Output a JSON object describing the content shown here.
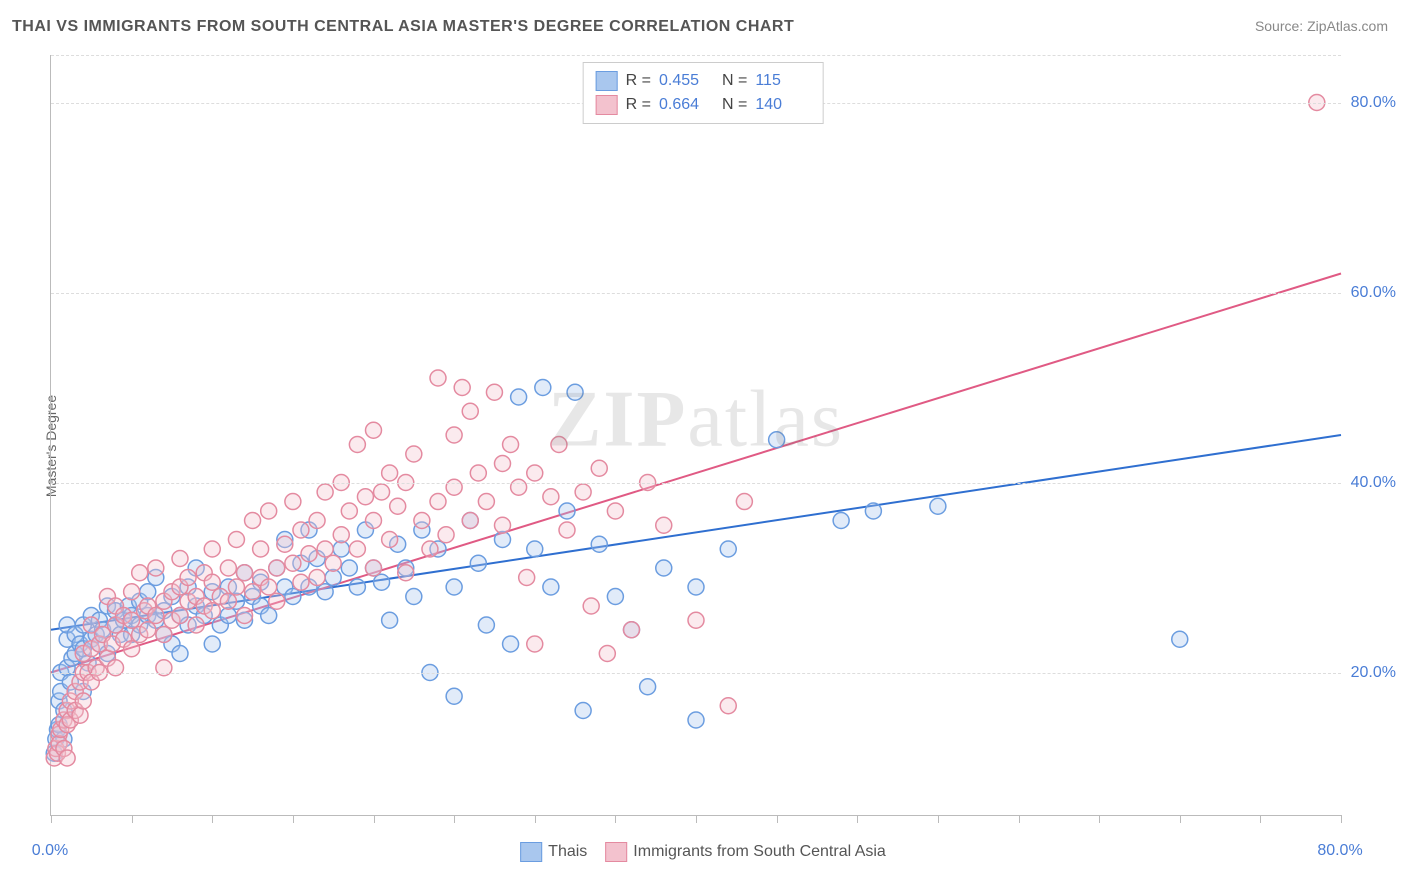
{
  "title": "THAI VS IMMIGRANTS FROM SOUTH CENTRAL ASIA MASTER'S DEGREE CORRELATION CHART",
  "source_prefix": "Source: ",
  "source_name": "ZipAtlas.com",
  "ylabel": "Master's Degree",
  "watermark_a": "ZIP",
  "watermark_b": "atlas",
  "chart": {
    "type": "scatter",
    "xlim": [
      0,
      80
    ],
    "ylim": [
      5,
      85
    ],
    "x_tick_start": 0,
    "x_tick_step": 5,
    "x_tick_count": 17,
    "x_labels": [
      {
        "value": 0,
        "text": "0.0%"
      },
      {
        "value": 80,
        "text": "80.0%"
      }
    ],
    "y_gridlines": [
      20,
      40,
      60,
      80,
      85
    ],
    "y_labels": [
      {
        "value": 20,
        "text": "20.0%"
      },
      {
        "value": 40,
        "text": "40.0%"
      },
      {
        "value": 60,
        "text": "60.0%"
      },
      {
        "value": 80,
        "text": "80.0%"
      }
    ],
    "background_color": "#ffffff",
    "grid_color": "#dddddd",
    "axis_color": "#bbbbbb",
    "marker_radius": 8,
    "marker_stroke_width": 1.5,
    "marker_fill_opacity": 0.35,
    "line_width": 2,
    "series": [
      {
        "name": "Thais",
        "color_stroke": "#6b9de0",
        "color_fill": "#a9c7ee",
        "line_color": "#2f6fd0",
        "R": "0.455",
        "N": "115",
        "regression": {
          "x1": 0,
          "y1": 24.5,
          "x2": 80,
          "y2": 45.0
        },
        "points": [
          [
            0.2,
            11.5
          ],
          [
            0.3,
            13.0
          ],
          [
            0.4,
            14.0
          ],
          [
            0.5,
            14.5
          ],
          [
            0.5,
            17.0
          ],
          [
            0.6,
            18.0
          ],
          [
            0.6,
            20.0
          ],
          [
            0.8,
            13.0
          ],
          [
            0.8,
            16.0
          ],
          [
            1.0,
            20.5
          ],
          [
            1.0,
            23.5
          ],
          [
            1.0,
            25.0
          ],
          [
            1.2,
            19.0
          ],
          [
            1.3,
            21.5
          ],
          [
            1.5,
            22.0
          ],
          [
            1.5,
            24.0
          ],
          [
            1.8,
            23.0
          ],
          [
            2.0,
            22.5
          ],
          [
            2.0,
            25.0
          ],
          [
            2.0,
            18.0
          ],
          [
            2.3,
            21.0
          ],
          [
            2.5,
            23.5
          ],
          [
            2.5,
            26.0
          ],
          [
            2.8,
            24.0
          ],
          [
            3.0,
            23.0
          ],
          [
            3.0,
            25.5
          ],
          [
            3.2,
            24.5
          ],
          [
            3.5,
            22.0
          ],
          [
            3.5,
            27.0
          ],
          [
            4.0,
            25.0
          ],
          [
            4.0,
            26.5
          ],
          [
            4.3,
            24.0
          ],
          [
            4.5,
            25.5
          ],
          [
            4.8,
            27.0
          ],
          [
            5.0,
            26.0
          ],
          [
            5.0,
            24.0
          ],
          [
            5.5,
            27.5
          ],
          [
            5.5,
            25.0
          ],
          [
            6.0,
            26.0
          ],
          [
            6.0,
            28.5
          ],
          [
            6.5,
            25.5
          ],
          [
            6.5,
            30.0
          ],
          [
            7.0,
            26.5
          ],
          [
            7.0,
            24.0
          ],
          [
            7.5,
            28.0
          ],
          [
            7.5,
            23.0
          ],
          [
            8.0,
            26.0
          ],
          [
            8.0,
            22.0
          ],
          [
            8.5,
            25.0
          ],
          [
            8.5,
            29.0
          ],
          [
            9.0,
            27.0
          ],
          [
            9.0,
            31.0
          ],
          [
            9.5,
            26.0
          ],
          [
            10.0,
            23.0
          ],
          [
            10.0,
            28.5
          ],
          [
            10.5,
            25.0
          ],
          [
            11.0,
            29.0
          ],
          [
            11.0,
            26.0
          ],
          [
            11.5,
            27.5
          ],
          [
            12.0,
            25.5
          ],
          [
            12.0,
            30.5
          ],
          [
            12.5,
            28.0
          ],
          [
            13.0,
            29.5
          ],
          [
            13.0,
            27.0
          ],
          [
            13.5,
            26.0
          ],
          [
            14.0,
            31.0
          ],
          [
            14.5,
            29.0
          ],
          [
            14.5,
            34.0
          ],
          [
            15.0,
            28.0
          ],
          [
            15.5,
            31.5
          ],
          [
            16.0,
            29.0
          ],
          [
            16.0,
            35.0
          ],
          [
            16.5,
            32.0
          ],
          [
            17.0,
            28.5
          ],
          [
            17.5,
            30.0
          ],
          [
            18.0,
            33.0
          ],
          [
            18.5,
            31.0
          ],
          [
            19.0,
            29.0
          ],
          [
            19.5,
            35.0
          ],
          [
            20.0,
            31.0
          ],
          [
            20.5,
            29.5
          ],
          [
            21.0,
            25.5
          ],
          [
            21.5,
            33.5
          ],
          [
            22.0,
            31.0
          ],
          [
            22.5,
            28.0
          ],
          [
            23.0,
            35.0
          ],
          [
            23.5,
            20.0
          ],
          [
            24.0,
            33.0
          ],
          [
            25.0,
            29.0
          ],
          [
            25.0,
            17.5
          ],
          [
            26.0,
            36.0
          ],
          [
            26.5,
            31.5
          ],
          [
            27.0,
            25.0
          ],
          [
            28.0,
            34.0
          ],
          [
            28.5,
            23.0
          ],
          [
            29.0,
            49.0
          ],
          [
            30.0,
            33.0
          ],
          [
            30.5,
            50.0
          ],
          [
            31.0,
            29.0
          ],
          [
            32.0,
            37.0
          ],
          [
            32.5,
            49.5
          ],
          [
            33.0,
            16.0
          ],
          [
            34.0,
            33.5
          ],
          [
            35.0,
            28.0
          ],
          [
            36.0,
            24.5
          ],
          [
            37.0,
            18.5
          ],
          [
            38.0,
            31.0
          ],
          [
            40.0,
            29.0
          ],
          [
            40.0,
            15.0
          ],
          [
            42.0,
            33.0
          ],
          [
            45.0,
            44.5
          ],
          [
            49.0,
            36.0
          ],
          [
            51.0,
            37.0
          ],
          [
            55.0,
            37.5
          ],
          [
            70.0,
            23.5
          ]
        ]
      },
      {
        "name": "Immigrants from South Central Asia",
        "color_stroke": "#e48aa0",
        "color_fill": "#f3c2ce",
        "line_color": "#e05a84",
        "R": "0.664",
        "N": "140",
        "regression": {
          "x1": 0,
          "y1": 20.0,
          "x2": 80,
          "y2": 62.0
        },
        "points": [
          [
            0.2,
            11.0
          ],
          [
            0.3,
            12.0
          ],
          [
            0.4,
            11.5
          ],
          [
            0.5,
            13.5
          ],
          [
            0.5,
            12.5
          ],
          [
            0.6,
            14.0
          ],
          [
            0.8,
            15.0
          ],
          [
            0.8,
            12.0
          ],
          [
            1.0,
            16.0
          ],
          [
            1.0,
            14.5
          ],
          [
            1.0,
            11.0
          ],
          [
            1.2,
            17.0
          ],
          [
            1.2,
            15.0
          ],
          [
            1.5,
            18.0
          ],
          [
            1.5,
            16.0
          ],
          [
            1.8,
            19.0
          ],
          [
            1.8,
            15.5
          ],
          [
            2.0,
            20.0
          ],
          [
            2.0,
            17.0
          ],
          [
            2.0,
            22.0
          ],
          [
            2.3,
            20.0
          ],
          [
            2.5,
            22.5
          ],
          [
            2.5,
            19.0
          ],
          [
            2.5,
            25.0
          ],
          [
            2.8,
            20.5
          ],
          [
            3.0,
            23.0
          ],
          [
            3.0,
            20.0
          ],
          [
            3.2,
            24.0
          ],
          [
            3.5,
            21.5
          ],
          [
            3.5,
            28.0
          ],
          [
            3.8,
            23.0
          ],
          [
            4.0,
            25.0
          ],
          [
            4.0,
            20.5
          ],
          [
            4.0,
            27.0
          ],
          [
            4.5,
            23.5
          ],
          [
            4.5,
            26.0
          ],
          [
            5.0,
            25.5
          ],
          [
            5.0,
            22.5
          ],
          [
            5.0,
            28.5
          ],
          [
            5.5,
            24.0
          ],
          [
            5.5,
            30.5
          ],
          [
            5.8,
            26.5
          ],
          [
            6.0,
            27.0
          ],
          [
            6.0,
            24.5
          ],
          [
            6.5,
            26.0
          ],
          [
            6.5,
            31.0
          ],
          [
            7.0,
            27.5
          ],
          [
            7.0,
            24.0
          ],
          [
            7.0,
            20.5
          ],
          [
            7.5,
            28.5
          ],
          [
            7.5,
            25.5
          ],
          [
            8.0,
            29.0
          ],
          [
            8.0,
            26.0
          ],
          [
            8.0,
            32.0
          ],
          [
            8.5,
            27.5
          ],
          [
            8.5,
            30.0
          ],
          [
            9.0,
            28.0
          ],
          [
            9.0,
            25.0
          ],
          [
            9.5,
            30.5
          ],
          [
            9.5,
            27.0
          ],
          [
            10.0,
            29.5
          ],
          [
            10.0,
            26.5
          ],
          [
            10.0,
            33.0
          ],
          [
            10.5,
            28.0
          ],
          [
            11.0,
            31.0
          ],
          [
            11.0,
            27.5
          ],
          [
            11.5,
            29.0
          ],
          [
            11.5,
            34.0
          ],
          [
            12.0,
            30.5
          ],
          [
            12.0,
            26.0
          ],
          [
            12.5,
            28.5
          ],
          [
            12.5,
            36.0
          ],
          [
            13.0,
            30.0
          ],
          [
            13.0,
            33.0
          ],
          [
            13.5,
            29.0
          ],
          [
            13.5,
            37.0
          ],
          [
            14.0,
            31.0
          ],
          [
            14.0,
            27.5
          ],
          [
            14.5,
            33.5
          ],
          [
            15.0,
            31.5
          ],
          [
            15.0,
            38.0
          ],
          [
            15.5,
            29.5
          ],
          [
            15.5,
            35.0
          ],
          [
            16.0,
            32.5
          ],
          [
            16.5,
            36.0
          ],
          [
            16.5,
            30.0
          ],
          [
            17.0,
            39.0
          ],
          [
            17.0,
            33.0
          ],
          [
            17.5,
            31.5
          ],
          [
            18.0,
            40.0
          ],
          [
            18.0,
            34.5
          ],
          [
            18.5,
            37.0
          ],
          [
            19.0,
            33.0
          ],
          [
            19.0,
            44.0
          ],
          [
            19.5,
            38.5
          ],
          [
            20.0,
            36.0
          ],
          [
            20.0,
            31.0
          ],
          [
            20.0,
            45.5
          ],
          [
            20.5,
            39.0
          ],
          [
            21.0,
            34.0
          ],
          [
            21.0,
            41.0
          ],
          [
            21.5,
            37.5
          ],
          [
            22.0,
            40.0
          ],
          [
            22.0,
            30.5
          ],
          [
            22.5,
            43.0
          ],
          [
            23.0,
            36.0
          ],
          [
            23.5,
            33.0
          ],
          [
            24.0,
            51.0
          ],
          [
            24.0,
            38.0
          ],
          [
            24.5,
            34.5
          ],
          [
            25.0,
            45.0
          ],
          [
            25.0,
            39.5
          ],
          [
            25.5,
            50.0
          ],
          [
            26.0,
            36.0
          ],
          [
            26.0,
            47.5
          ],
          [
            26.5,
            41.0
          ],
          [
            27.0,
            38.0
          ],
          [
            27.5,
            49.5
          ],
          [
            28.0,
            42.0
          ],
          [
            28.0,
            35.5
          ],
          [
            28.5,
            44.0
          ],
          [
            29.0,
            39.5
          ],
          [
            29.5,
            30.0
          ],
          [
            30.0,
            41.0
          ],
          [
            30.0,
            23.0
          ],
          [
            31.0,
            38.5
          ],
          [
            31.5,
            44.0
          ],
          [
            32.0,
            35.0
          ],
          [
            33.0,
            39.0
          ],
          [
            33.5,
            27.0
          ],
          [
            34.0,
            41.5
          ],
          [
            34.5,
            22.0
          ],
          [
            35.0,
            37.0
          ],
          [
            36.0,
            24.5
          ],
          [
            37.0,
            40.0
          ],
          [
            38.0,
            35.5
          ],
          [
            40.0,
            25.5
          ],
          [
            42.0,
            16.5
          ],
          [
            43.0,
            38.0
          ],
          [
            78.5,
            80.0
          ]
        ]
      }
    ]
  },
  "legend_labels": {
    "R": "R =",
    "N": "N ="
  }
}
